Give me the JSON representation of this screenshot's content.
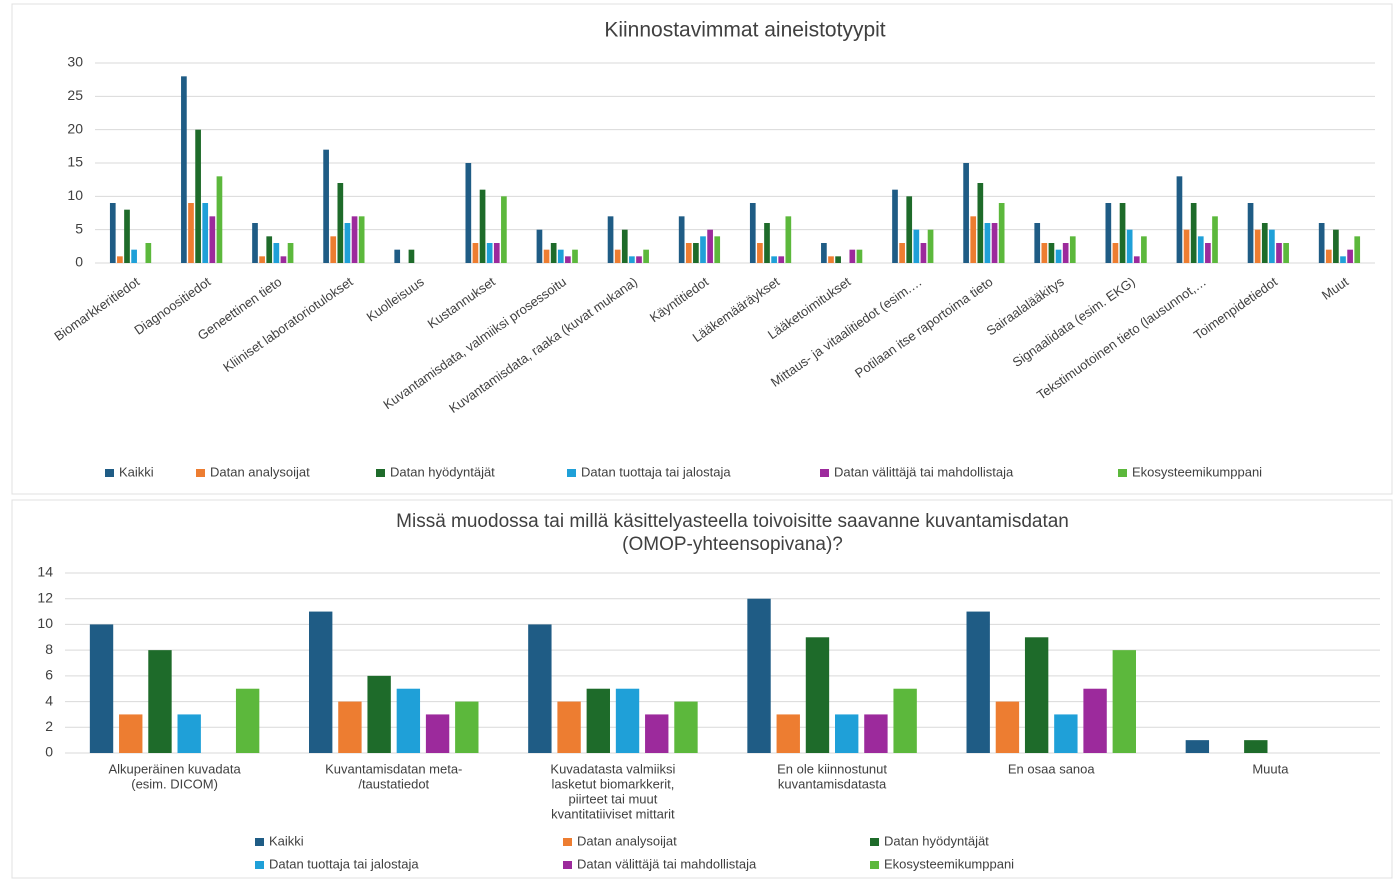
{
  "chart_data": [
    {
      "type": "bar",
      "title": [
        "Kiinnostavimmat aineistotyypit"
      ],
      "categories": [
        "Biomarkkeritiedot",
        "Diagnoositiedot",
        "Geneettinen tieto",
        "Kliiniset laboratoriotulokset",
        "Kuolleisuus",
        "Kustannukset",
        "Kuvantamisdata, valmiiksi prosessoitu",
        "Kuvantamisdata, raaka (kuvat mukana)",
        "Käyntitiedot",
        "Lääkemääräykset",
        "Lääketoimitukset",
        "Mittaus- ja vitaalitiedot (esim.…",
        "Potilaan itse raportoima tieto",
        "Sairaalalääkitys",
        "Signaalidata (esim. EKG)",
        "Tekstimuotoinen tieto (lausunnot,…",
        "Toimenpidetiedot",
        "Muut"
      ],
      "series": [
        {
          "name": "Kaikki",
          "color": "#1f5c85",
          "values": [
            9,
            28,
            6,
            17,
            2,
            15,
            5,
            7,
            7,
            9,
            3,
            11,
            15,
            6,
            9,
            13,
            9,
            6
          ]
        },
        {
          "name": "Datan analysoijat",
          "color": "#ed7d31",
          "values": [
            1,
            9,
            1,
            4,
            0,
            3,
            2,
            2,
            3,
            3,
            1,
            3,
            7,
            3,
            3,
            5,
            5,
            2
          ]
        },
        {
          "name": "Datan hyödyntäjät",
          "color": "#1e6b2a",
          "values": [
            8,
            20,
            4,
            12,
            2,
            11,
            3,
            5,
            3,
            6,
            1,
            10,
            12,
            3,
            9,
            9,
            6,
            5
          ]
        },
        {
          "name": "Datan tuottaja tai jalostaja",
          "color": "#1fa0d8",
          "values": [
            2,
            9,
            3,
            6,
            0,
            3,
            2,
            1,
            4,
            1,
            0,
            5,
            6,
            2,
            5,
            4,
            5,
            1
          ]
        },
        {
          "name": "Datan välittäjä tai mahdollistaja",
          "color": "#9c2a9c",
          "values": [
            0,
            7,
            1,
            7,
            0,
            3,
            1,
            1,
            5,
            1,
            2,
            3,
            6,
            3,
            1,
            3,
            3,
            2
          ]
        },
        {
          "name": "Ekosysteemikumppani",
          "color": "#5cb83c",
          "values": [
            3,
            13,
            3,
            7,
            0,
            10,
            2,
            2,
            4,
            7,
            2,
            5,
            9,
            4,
            4,
            7,
            3,
            4
          ]
        }
      ],
      "ylim": [
        0,
        30
      ],
      "yticks": [
        0,
        5,
        10,
        15,
        20,
        25,
        30
      ],
      "grid": true
    },
    {
      "type": "bar",
      "title": [
        "Missä muodossa tai millä käsittelyasteella toivoisitte saavanne kuvantamisdatan",
        "(OMOP-yhteensopivana)?"
      ],
      "categories": [
        [
          "Alkuperäinen kuvadata",
          "(esim. DICOM)"
        ],
        [
          "Kuvantamisdatan meta-",
          "/taustatiedot"
        ],
        [
          "Kuvadatasta valmiiksi",
          "lasketut biomarkkerit,",
          "piirteet tai muut",
          "kvantitatiiviset mittarit"
        ],
        [
          "En ole kiinnostunut",
          "kuvantamisdatasta"
        ],
        [
          "En osaa sanoa"
        ],
        [
          "Muuta"
        ]
      ],
      "series": [
        {
          "name": "Kaikki",
          "color": "#1f5c85",
          "values": [
            10,
            11,
            10,
            12,
            11,
            1
          ]
        },
        {
          "name": "Datan analysoijat",
          "color": "#ed7d31",
          "values": [
            3,
            4,
            4,
            3,
            4,
            0
          ]
        },
        {
          "name": "Datan hyödyntäjät",
          "color": "#1e6b2a",
          "values": [
            8,
            6,
            5,
            9,
            9,
            1
          ]
        },
        {
          "name": "Datan tuottaja tai jalostaja",
          "color": "#1fa0d8",
          "values": [
            3,
            5,
            5,
            3,
            3,
            0
          ]
        },
        {
          "name": "Datan välittäjä tai mahdollistaja",
          "color": "#9c2a9c",
          "values": [
            0,
            3,
            3,
            3,
            5,
            0
          ]
        },
        {
          "name": "Ekosysteemikumppani",
          "color": "#5cb83c",
          "values": [
            5,
            4,
            4,
            5,
            8,
            0
          ]
        }
      ],
      "ylim": [
        0,
        14
      ],
      "yticks": [
        0,
        2,
        4,
        6,
        8,
        10,
        12,
        14
      ],
      "grid": true
    }
  ]
}
